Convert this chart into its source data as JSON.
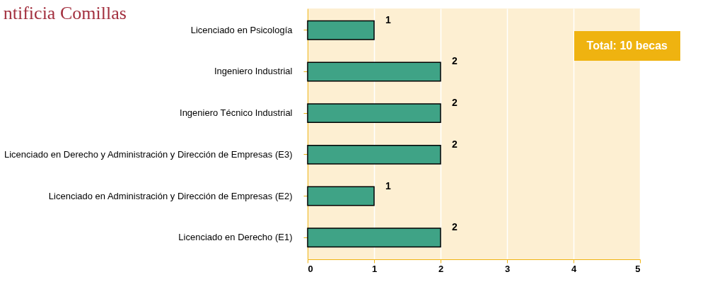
{
  "chart_data": {
    "type": "bar",
    "orientation": "horizontal",
    "title": "ntificia Comillas",
    "categories": [
      "Licenciado en Psicología",
      "Ingeniero Industrial",
      "Ingeniero Técnico Industrial",
      "Licenciado en Derecho y Administración y Dirección de Empresas (E3)",
      "Licenciado en Administración y Dirección de Empresas (E2)",
      "Licenciado en Derecho (E1)"
    ],
    "values": [
      1,
      2,
      2,
      2,
      1,
      2
    ],
    "color": "#3fa386",
    "xlim": [
      0,
      5
    ],
    "xticks": [
      0,
      1,
      2,
      3,
      4,
      5
    ],
    "grid": "x",
    "data_labels": true,
    "annotations": [
      "Total: 10 becas"
    ]
  }
}
